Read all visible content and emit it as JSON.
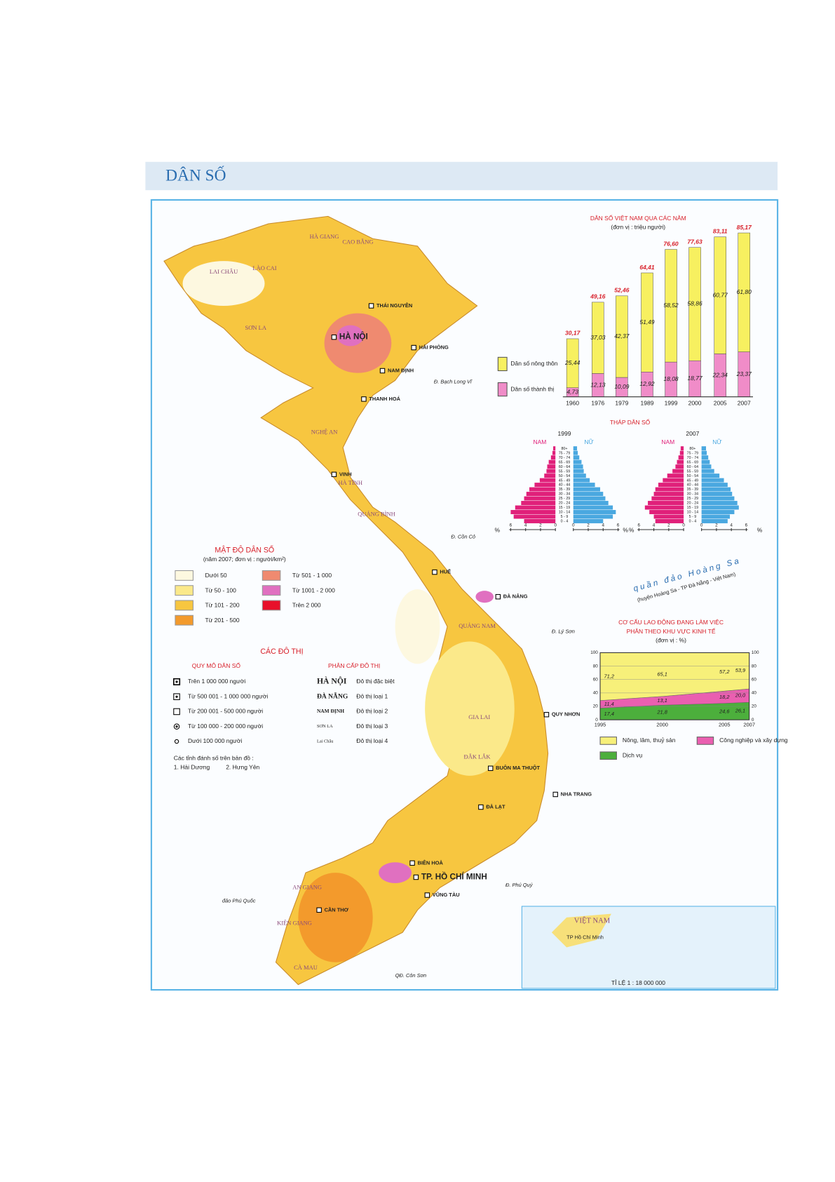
{
  "header": {
    "title": "DÂN SỐ"
  },
  "map": {
    "cities": [
      "HÀ NỘI",
      "HẢI PHÒNG",
      "THÁI NGUYÊN",
      "NAM ĐỊNH",
      "THANH HOÁ",
      "VINH",
      "HUẾ",
      "ĐÀ NẴNG",
      "QUY NHƠN",
      "BUÔN MA THUỘT",
      "NHA TRANG",
      "ĐÀ LẠT",
      "BIÊN HOÀ",
      "TP. HỒ CHÍ MINH",
      "VŨNG TÀU",
      "CẦN THƠ"
    ],
    "provinces": [
      "LAI CHÂU",
      "LÀO CAI",
      "HÀ GIANG",
      "CAO BẰNG",
      "SƠN LA",
      "NGHỆ AN",
      "HÀ TĨNH",
      "QUẢNG BÌNH",
      "QUẢNG NAM",
      "GIA LAI",
      "ĐẮK LẮK",
      "AN GIANG",
      "KIÊN GIANG",
      "CÀ MAU"
    ],
    "islands": [
      "đảo Phú Quốc",
      "Đ. Bạch Long Vĩ",
      "Đ. Cồn Cỏ",
      "Đ. Lý Sơn",
      "Đ. Phú Quý",
      "QĐ. Côn Sơn"
    ]
  },
  "archipelago": {
    "name": "quần đảo Hoàng Sa",
    "note": "(huyện Hoàng Sa - TP Đà Nẵng - Việt Nam)"
  },
  "inset": {
    "country": "VIỆT NAM",
    "city": "TP Hồ Chí Minh",
    "scale": "TỈ LỆ 1 : 18 000 000"
  },
  "legend_density": {
    "title": "MẬT ĐỘ DÂN SỐ",
    "subtitle": "(năm 2007; đơn vị : người/km²)",
    "items": [
      {
        "label": "Dưới 50",
        "color": "#fdf8e0"
      },
      {
        "label": "Từ 50 - 100",
        "color": "#fbe98a"
      },
      {
        "label": "Từ 101 - 200",
        "color": "#f7c640"
      },
      {
        "label": "Từ 201 - 500",
        "color": "#f39a2c"
      },
      {
        "label": "Từ 501 - 1 000",
        "color": "#ef8a70"
      },
      {
        "label": "Từ 1001 - 2 000",
        "color": "#e070c0"
      },
      {
        "label": "Trên 2 000",
        "color": "#e8102a"
      }
    ]
  },
  "legend_urban": {
    "title": "CÁC ĐÔ THỊ",
    "size_title": "QUY MÔ DÂN SỐ",
    "size_items": [
      "Trên 1 000 000 người",
      "Từ 500 001 - 1 000 000 người",
      "Từ 200 001 - 500 000 người",
      "Từ 100 000 - 200 000 người",
      "Dưới 100 000 người"
    ],
    "rank_title": "PHÂN CẤP ĐÔ THỊ",
    "rank_items": [
      {
        "name": "HÀ NỘI",
        "label": "Đô thị đặc biệt"
      },
      {
        "name": "ĐÀ NẴNG",
        "label": "Đô thị loại 1"
      },
      {
        "name": "NAM ĐỊNH",
        "label": "Đô thị loại 2"
      },
      {
        "name": "SƠN LA",
        "label": "Đô thị loại 3"
      },
      {
        "name": "Lai Châu",
        "label": "Đô thị loại 4"
      }
    ],
    "note": "Các tỉnh đánh số trên bản đồ :",
    "note_items": [
      "1. Hải Dương",
      "2. Hưng Yên"
    ]
  },
  "pyramids_title": "THÁP DÂN SỐ",
  "chart_data": [
    {
      "type": "stacked_bar",
      "title": "DÂN SỐ VIỆT NAM QUA CÁC NĂM",
      "subtitle": "(đơn vị : triệu người)",
      "categories": [
        "1960",
        "1976",
        "1979",
        "1989",
        "1999",
        "2000",
        "2005",
        "2007"
      ],
      "series": [
        {
          "name": "Dân số thành thị",
          "color": "#f08cc8",
          "values": [
            4.73,
            12.13,
            10.09,
            12.92,
            18.08,
            18.77,
            22.34,
            23.37
          ],
          "value_labels": [
            "4,73",
            "12,13",
            "10,09",
            "12,92",
            "18,08",
            "18,77",
            "22,34",
            "23,37"
          ]
        },
        {
          "name": "Dân số nông thôn",
          "color": "#f7f060",
          "values": [
            25.44,
            37.03,
            42.37,
            51.49,
            58.52,
            58.86,
            60.77,
            61.8
          ],
          "value_labels": [
            "25,44",
            "37,03",
            "42,37",
            "51,49",
            "58,52",
            "58,86",
            "60,77",
            "61,80"
          ]
        }
      ],
      "totals": [
        30.17,
        49.16,
        52.46,
        64.41,
        76.6,
        77.63,
        83.11,
        85.17
      ],
      "totals_labels": [
        "30,17",
        "49,16",
        "52,46",
        "64,41",
        "76,60",
        "77,63",
        "83,11",
        "85,17"
      ]
    },
    {
      "type": "pyramid",
      "year": "1999",
      "unit": "%",
      "categories": [
        "0 - 4",
        "5 - 9",
        "10 - 14",
        "15 - 19",
        "20 - 24",
        "25 - 29",
        "30 - 34",
        "35 - 39",
        "40 - 44",
        "45 - 49",
        "50 - 54",
        "55 - 59",
        "60 - 64",
        "65 - 69",
        "70 - 74",
        "75 - 79",
        "80+"
      ],
      "series": [
        {
          "name": "NAM",
          "color": "#e0207a",
          "values": [
            4.2,
            5.6,
            6.0,
            5.4,
            4.6,
            4.2,
            3.9,
            3.5,
            2.8,
            2.1,
            1.5,
            1.2,
            1.1,
            0.9,
            0.6,
            0.4,
            0.3
          ]
        },
        {
          "name": "NỮ",
          "color": "#4aa8e0",
          "values": [
            4.0,
            5.3,
            5.7,
            5.3,
            4.7,
            4.3,
            4.0,
            3.6,
            2.9,
            2.2,
            1.7,
            1.4,
            1.3,
            1.1,
            0.8,
            0.6,
            0.5
          ]
        }
      ],
      "xlim": [
        0,
        6
      ],
      "xticks": [
        0,
        2,
        4,
        6
      ]
    },
    {
      "type": "pyramid",
      "year": "2007",
      "unit": "%",
      "categories": [
        "0 - 4",
        "5 - 9",
        "10 - 14",
        "15 - 19",
        "20 - 24",
        "25 - 29",
        "30 - 34",
        "35 - 39",
        "40 - 44",
        "45 - 49",
        "50 - 54",
        "55 - 59",
        "60 - 64",
        "65 - 69",
        "70 - 74",
        "75 - 79",
        "80+"
      ],
      "series": [
        {
          "name": "NAM",
          "color": "#e0207a",
          "values": [
            3.8,
            4.0,
            4.6,
            5.2,
            4.8,
            4.3,
            4.0,
            3.8,
            3.4,
            2.8,
            2.2,
            1.5,
            1.1,
            0.9,
            0.7,
            0.5,
            0.4
          ]
        },
        {
          "name": "NỮ",
          "color": "#4aa8e0",
          "values": [
            3.5,
            3.8,
            4.4,
            5.0,
            4.8,
            4.4,
            4.1,
            3.9,
            3.5,
            3.0,
            2.4,
            1.7,
            1.3,
            1.1,
            0.9,
            0.7,
            0.6
          ]
        }
      ],
      "xlim": [
        0,
        6
      ],
      "xticks": [
        0,
        2,
        4,
        6
      ]
    },
    {
      "type": "stacked_area",
      "title": "CƠ CẤU LAO ĐỘNG ĐANG LÀM VIỆC",
      "subtitle": "PHÂN THEO KHU VỰC KINH TẾ",
      "unit": "(đơn vị : %)",
      "x": [
        1995,
        2000,
        2005,
        2007
      ],
      "xlim": [
        1995,
        2007
      ],
      "xticks": [
        1995,
        2000,
        2005,
        2007
      ],
      "series": [
        {
          "name": "Dịch vụ",
          "color": "#4caf3c",
          "values": [
            17.4,
            21.8,
            24.6,
            26.1
          ],
          "value_labels": [
            "17,4",
            "21,8",
            "24,6",
            "26,1"
          ]
        },
        {
          "name": "Công nghiệp và xây dựng",
          "color": "#ea5fb0",
          "values": [
            11.4,
            13.1,
            18.2,
            20.0
          ],
          "value_labels": [
            "11,4",
            "13,1",
            "18,2",
            "20,0"
          ]
        },
        {
          "name": "Nông, lâm, thuỷ sản",
          "color": "#f7f07a",
          "values": [
            71.2,
            65.1,
            57.2,
            53.9
          ],
          "value_labels": [
            "71,2",
            "65,1",
            "57,2",
            "53,9"
          ]
        }
      ],
      "ylim": [
        0,
        100
      ],
      "yticks": [
        0,
        20,
        40,
        60,
        80,
        100
      ]
    }
  ]
}
